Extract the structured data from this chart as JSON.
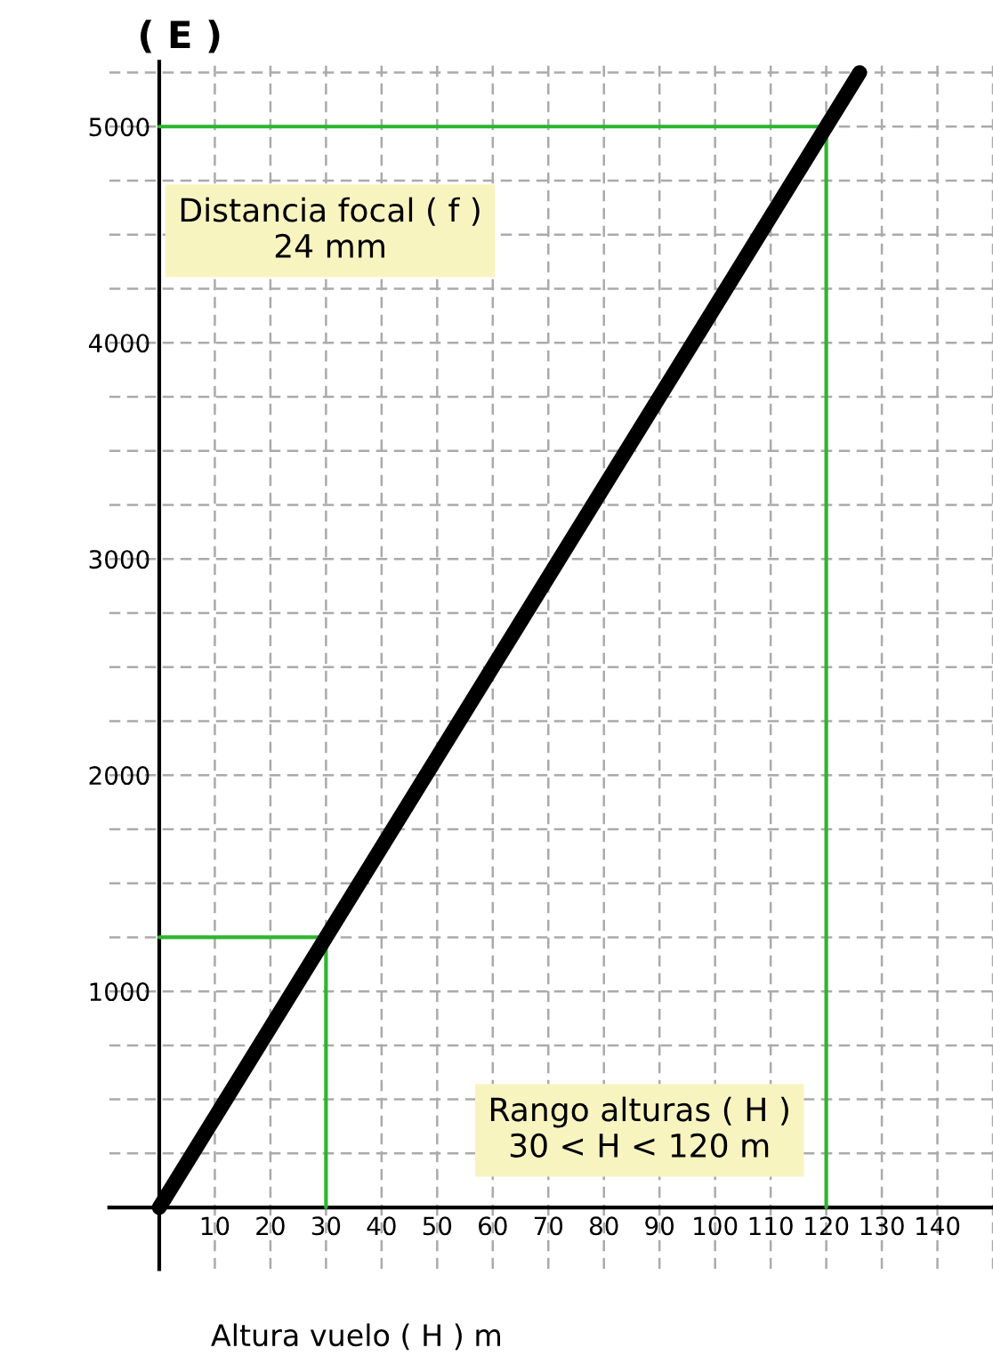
{
  "chart_data": {
    "type": "line",
    "xlabel": "Altura vuelo ( H ) m",
    "ylabel": "( E )",
    "annotations": [
      "Distancia focal ( f )\n24 mm",
      "Rango alturas ( H )\n30 < H < 120 m"
    ],
    "series": [
      {
        "x": [
          0,
          126
        ],
        "values": [
          0,
          5250
        ],
        "color": "#000000"
      },
      {
        "x": [
          0,
          120,
          120
        ],
        "values": [
          5000,
          5000,
          0
        ],
        "color": "#2db52d"
      },
      {
        "x": [
          0,
          30,
          30
        ],
        "values": [
          1250,
          1250,
          0
        ],
        "color": "#2db52d"
      }
    ],
    "xlim": [
      -9,
      150
    ],
    "ylim": [
      -285,
      5300
    ],
    "xticks": [
      10,
      20,
      30,
      40,
      50,
      60,
      70,
      80,
      90,
      100,
      110,
      120,
      130,
      140,
      {
        "value": 150,
        "label": null
      }
    ],
    "yticks": [
      {
        "value": 250,
        "label": null
      },
      {
        "value": 500,
        "label": null
      },
      {
        "value": 750,
        "label": null
      },
      1000,
      {
        "value": 1250,
        "label": null
      },
      {
        "value": 1500,
        "label": null
      },
      {
        "value": 1750,
        "label": null
      },
      2000,
      {
        "value": 2250,
        "label": null
      },
      {
        "value": 2500,
        "label": null
      },
      {
        "value": 2750,
        "label": null
      },
      3000,
      {
        "value": 3250,
        "label": null
      },
      {
        "value": 3500,
        "label": null
      },
      {
        "value": 3750,
        "label": null
      },
      4000,
      {
        "value": 4250,
        "label": null
      },
      {
        "value": 4500,
        "label": null
      },
      {
        "value": 4750,
        "label": null
      },
      5000,
      {
        "value": 5250,
        "label": null
      }
    ],
    "grid": true,
    "marker": "none",
    "line_style": "solid"
  }
}
